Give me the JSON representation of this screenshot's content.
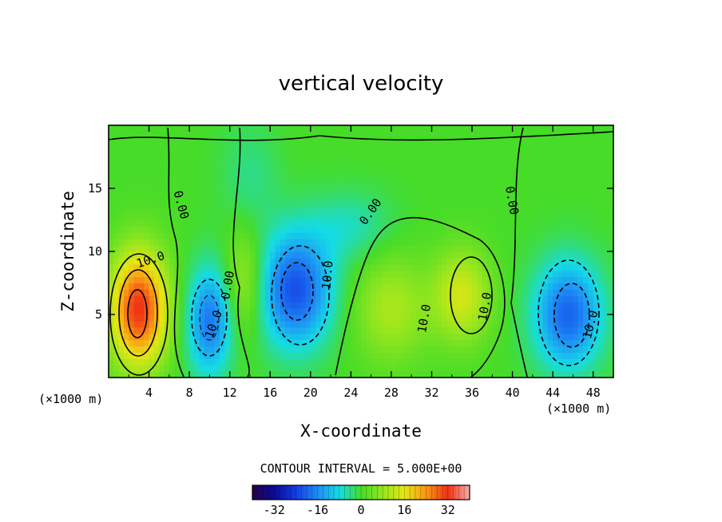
{
  "chart_data": {
    "type": "heatmap",
    "title": "vertical velocity",
    "xlabel": "X-coordinate",
    "ylabel": "Z-coordinate",
    "x_unit": "(×1000 m)",
    "y_unit": "(×1000 m)",
    "xlim": [
      0,
      50
    ],
    "ylim": [
      0,
      20
    ],
    "x_ticks": [
      4,
      8,
      12,
      16,
      20,
      24,
      28,
      32,
      36,
      40,
      44,
      48
    ],
    "y_ticks": [
      5,
      10,
      15
    ],
    "contour_interval_text": "CONTOUR INTERVAL = 5.000E+00",
    "contour_labels": [
      "10.0",
      "0.00",
      "0.00",
      "10.0",
      "0.00",
      "10.0",
      "10.0",
      "10.0",
      "0.00",
      "10.0"
    ],
    "colorbar": {
      "range": [
        -40,
        40
      ],
      "tick_values": [
        -32,
        -16,
        0,
        16,
        32
      ],
      "tick_labels": [
        "-32",
        "-16",
        "0",
        "16",
        "32"
      ]
    },
    "cells": [
      {
        "x": 3,
        "z": 5.5,
        "value": 32,
        "sx": 2.0,
        "sz": 3.2
      },
      {
        "x": 10,
        "z": 4.5,
        "value": -18,
        "sx": 1.6,
        "sz": 3.0
      },
      {
        "x": 13.5,
        "z": 7.5,
        "value": 10,
        "sx": 1.4,
        "sz": 3.0
      },
      {
        "x": 18.5,
        "z": 7,
        "value": -22,
        "sx": 2.6,
        "sz": 3.2
      },
      {
        "x": 28,
        "z": 5.5,
        "value": 10,
        "sx": 2.6,
        "sz": 3.0
      },
      {
        "x": 35,
        "z": 6.5,
        "value": 14,
        "sx": 2.0,
        "sz": 2.6
      },
      {
        "x": 45.5,
        "z": 5,
        "value": -20,
        "sx": 2.4,
        "sz": 3.0
      },
      {
        "x": 24,
        "z": 12,
        "value": -6,
        "sx": 3.0,
        "sz": 2.0
      },
      {
        "x": 14,
        "z": 16,
        "value": -4,
        "sx": 2.0,
        "sz": 3.0
      }
    ],
    "legend": "colorbar-bottom",
    "grid": false
  }
}
